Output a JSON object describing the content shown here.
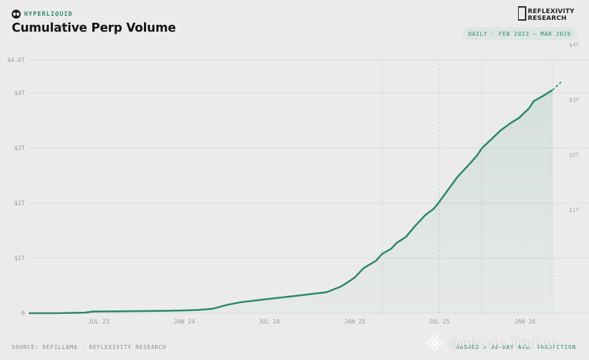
{
  "header": {
    "brand": "HYPERLIQUID",
    "title": "Cumulative Perp Volume",
    "date_range": "DAILY · FEB 2023 — MAR 2026",
    "logo_line1": "REFLEXIVITY",
    "logo_line2": "RESEARCH"
  },
  "footer": {
    "source": "SOURCE: DEFILLAMA · REFLEXIVITY RESEARCH",
    "note": "DASHED = 30-DAY AVG. PROJECTION"
  },
  "watermark": {
    "text": "@Altcoin Trading",
    "icon": "binance-icon"
  },
  "colors": {
    "line": "#2a8a6a",
    "brand": "#2f8a6e",
    "grid": "#d6d6d6",
    "background": "#ebebeb"
  },
  "chart_data": {
    "type": "area",
    "title": "Cumulative Perp Volume",
    "xlabel": "",
    "ylabel": "",
    "xlim": [
      "2023-02-01",
      "2026-03-31"
    ],
    "ylim": [
      0,
      4.6
    ],
    "y_unit": "trillion USD",
    "y_ticks": [
      {
        "value": 0,
        "label": "0"
      },
      {
        "value": 1,
        "label": "$1T"
      },
      {
        "value": 2,
        "label": "$2T"
      },
      {
        "value": 3,
        "label": "$3T"
      },
      {
        "value": 4,
        "label": "$4T"
      },
      {
        "value": 4.6,
        "label": "$4.6T"
      }
    ],
    "right_ticks": [
      {
        "value": 1,
        "label": "$1T"
      },
      {
        "value": 2,
        "label": "$2T"
      },
      {
        "value": 3,
        "label": "$3T"
      },
      {
        "value": 4,
        "label": "$4T"
      }
    ],
    "x_ticks": [
      {
        "date": "2023-07-01",
        "label": "JUL 23"
      },
      {
        "date": "2024-01-01",
        "label": "JAN 24"
      },
      {
        "date": "2024-07-01",
        "label": "JUL 24"
      },
      {
        "date": "2025-01-01",
        "label": "JAN 25"
      },
      {
        "date": "2025-07-01",
        "label": "JUL 25"
      },
      {
        "date": "2026-01-01",
        "label": "JAN 26"
      }
    ],
    "markers": [
      "2025-03-01",
      "2025-07-01",
      "2025-10-01",
      "2026-03-01"
    ],
    "grid": true,
    "series": [
      {
        "points": [
          [
            "2023-02-01",
            0.0
          ],
          [
            "2023-04-01",
            0.0
          ],
          [
            "2023-06-01",
            0.01
          ],
          [
            "2023-06-20",
            0.03
          ],
          [
            "2023-09-01",
            0.035
          ],
          [
            "2023-12-01",
            0.045
          ],
          [
            "2024-01-01",
            0.05
          ],
          [
            "2024-02-01",
            0.06
          ],
          [
            "2024-03-01",
            0.08
          ],
          [
            "2024-04-01",
            0.15
          ],
          [
            "2024-05-01",
            0.2
          ],
          [
            "2024-06-01",
            0.23
          ],
          [
            "2024-07-01",
            0.26
          ],
          [
            "2024-08-01",
            0.29
          ],
          [
            "2024-09-01",
            0.32
          ],
          [
            "2024-10-01",
            0.35
          ],
          [
            "2024-11-01",
            0.38
          ],
          [
            "2024-12-01",
            0.48
          ],
          [
            "2024-12-20",
            0.58
          ],
          [
            "2025-01-01",
            0.65
          ],
          [
            "2025-01-20",
            0.82
          ],
          [
            "2025-02-15",
            0.95
          ],
          [
            "2025-03-01",
            1.08
          ],
          [
            "2025-03-20",
            1.17
          ],
          [
            "2025-04-01",
            1.28
          ],
          [
            "2025-04-20",
            1.38
          ],
          [
            "2025-05-10",
            1.58
          ],
          [
            "2025-06-01",
            1.78
          ],
          [
            "2025-06-20",
            1.9
          ],
          [
            "2025-07-01",
            2.02
          ],
          [
            "2025-07-20",
            2.24
          ],
          [
            "2025-08-10",
            2.48
          ],
          [
            "2025-09-01",
            2.68
          ],
          [
            "2025-09-20",
            2.86
          ],
          [
            "2025-10-01",
            3.0
          ],
          [
            "2025-10-20",
            3.15
          ],
          [
            "2025-11-10",
            3.32
          ],
          [
            "2025-12-01",
            3.45
          ],
          [
            "2025-12-20",
            3.55
          ],
          [
            "2026-01-10",
            3.72
          ],
          [
            "2026-01-20",
            3.85
          ],
          [
            "2026-02-10",
            3.95
          ],
          [
            "2026-03-01",
            4.05
          ]
        ]
      },
      {
        "style": "dashed",
        "points": [
          [
            "2026-03-01",
            4.05
          ],
          [
            "2026-03-20",
            4.2
          ]
        ]
      }
    ]
  }
}
